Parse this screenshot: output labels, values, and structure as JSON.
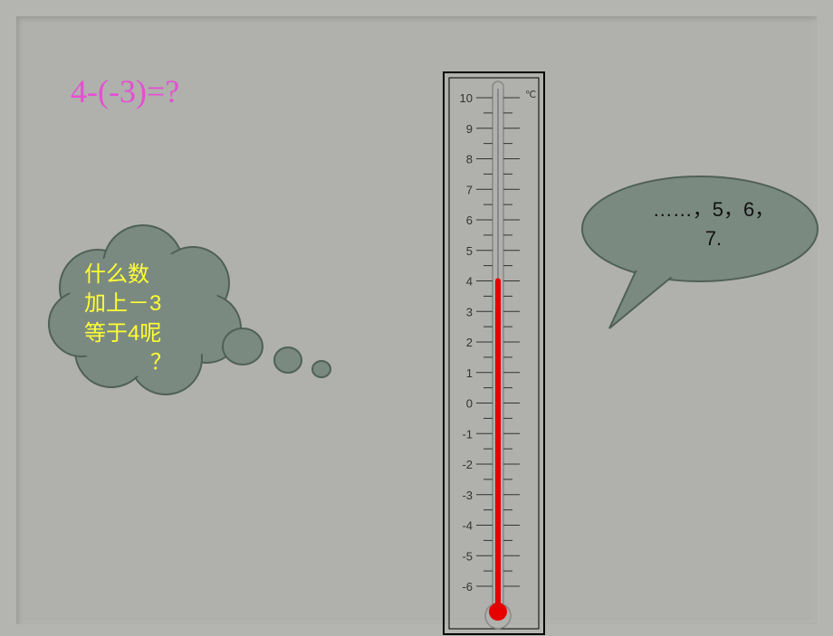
{
  "equation": "4-(-3)=?",
  "thought_cloud": {
    "fill": "#7b8a81",
    "stroke": "#4f6058",
    "text_lines": [
      "什么数",
      "加上－3",
      "等于4呢",
      "？"
    ],
    "text_color": "#ffff33",
    "font_size": 24
  },
  "speech_bubble": {
    "fill": "#7b8a81",
    "stroke": "#4f6058",
    "text_line1": "……，5，6，",
    "text_line2": "7.",
    "text_color": "#111111",
    "font_size": 22
  },
  "thermometer": {
    "unit_label": "℃",
    "border_color": "#000000",
    "tube_color": "#888888",
    "mercury_color": "#e60000",
    "mercury_value": 4,
    "scale_min": -6,
    "scale_max": 10,
    "major_ticks": [
      10,
      9,
      8,
      7,
      6,
      5,
      4,
      3,
      2,
      1,
      0,
      -1,
      -2,
      -3,
      -4,
      -5,
      -6
    ],
    "tick_labels": [
      "10",
      "9",
      "8",
      "7",
      "6",
      "5",
      "4",
      "3",
      "2",
      "1",
      "0",
      "1",
      "2",
      "3",
      "4",
      "5",
      "6"
    ],
    "tick_color": "#333333",
    "label_color": "#333333",
    "bulb_radius": 10
  },
  "colors": {
    "page_bg": "#b4b4b0",
    "slide_bg": "#b0b0ac",
    "equation": "#e64ed4"
  }
}
